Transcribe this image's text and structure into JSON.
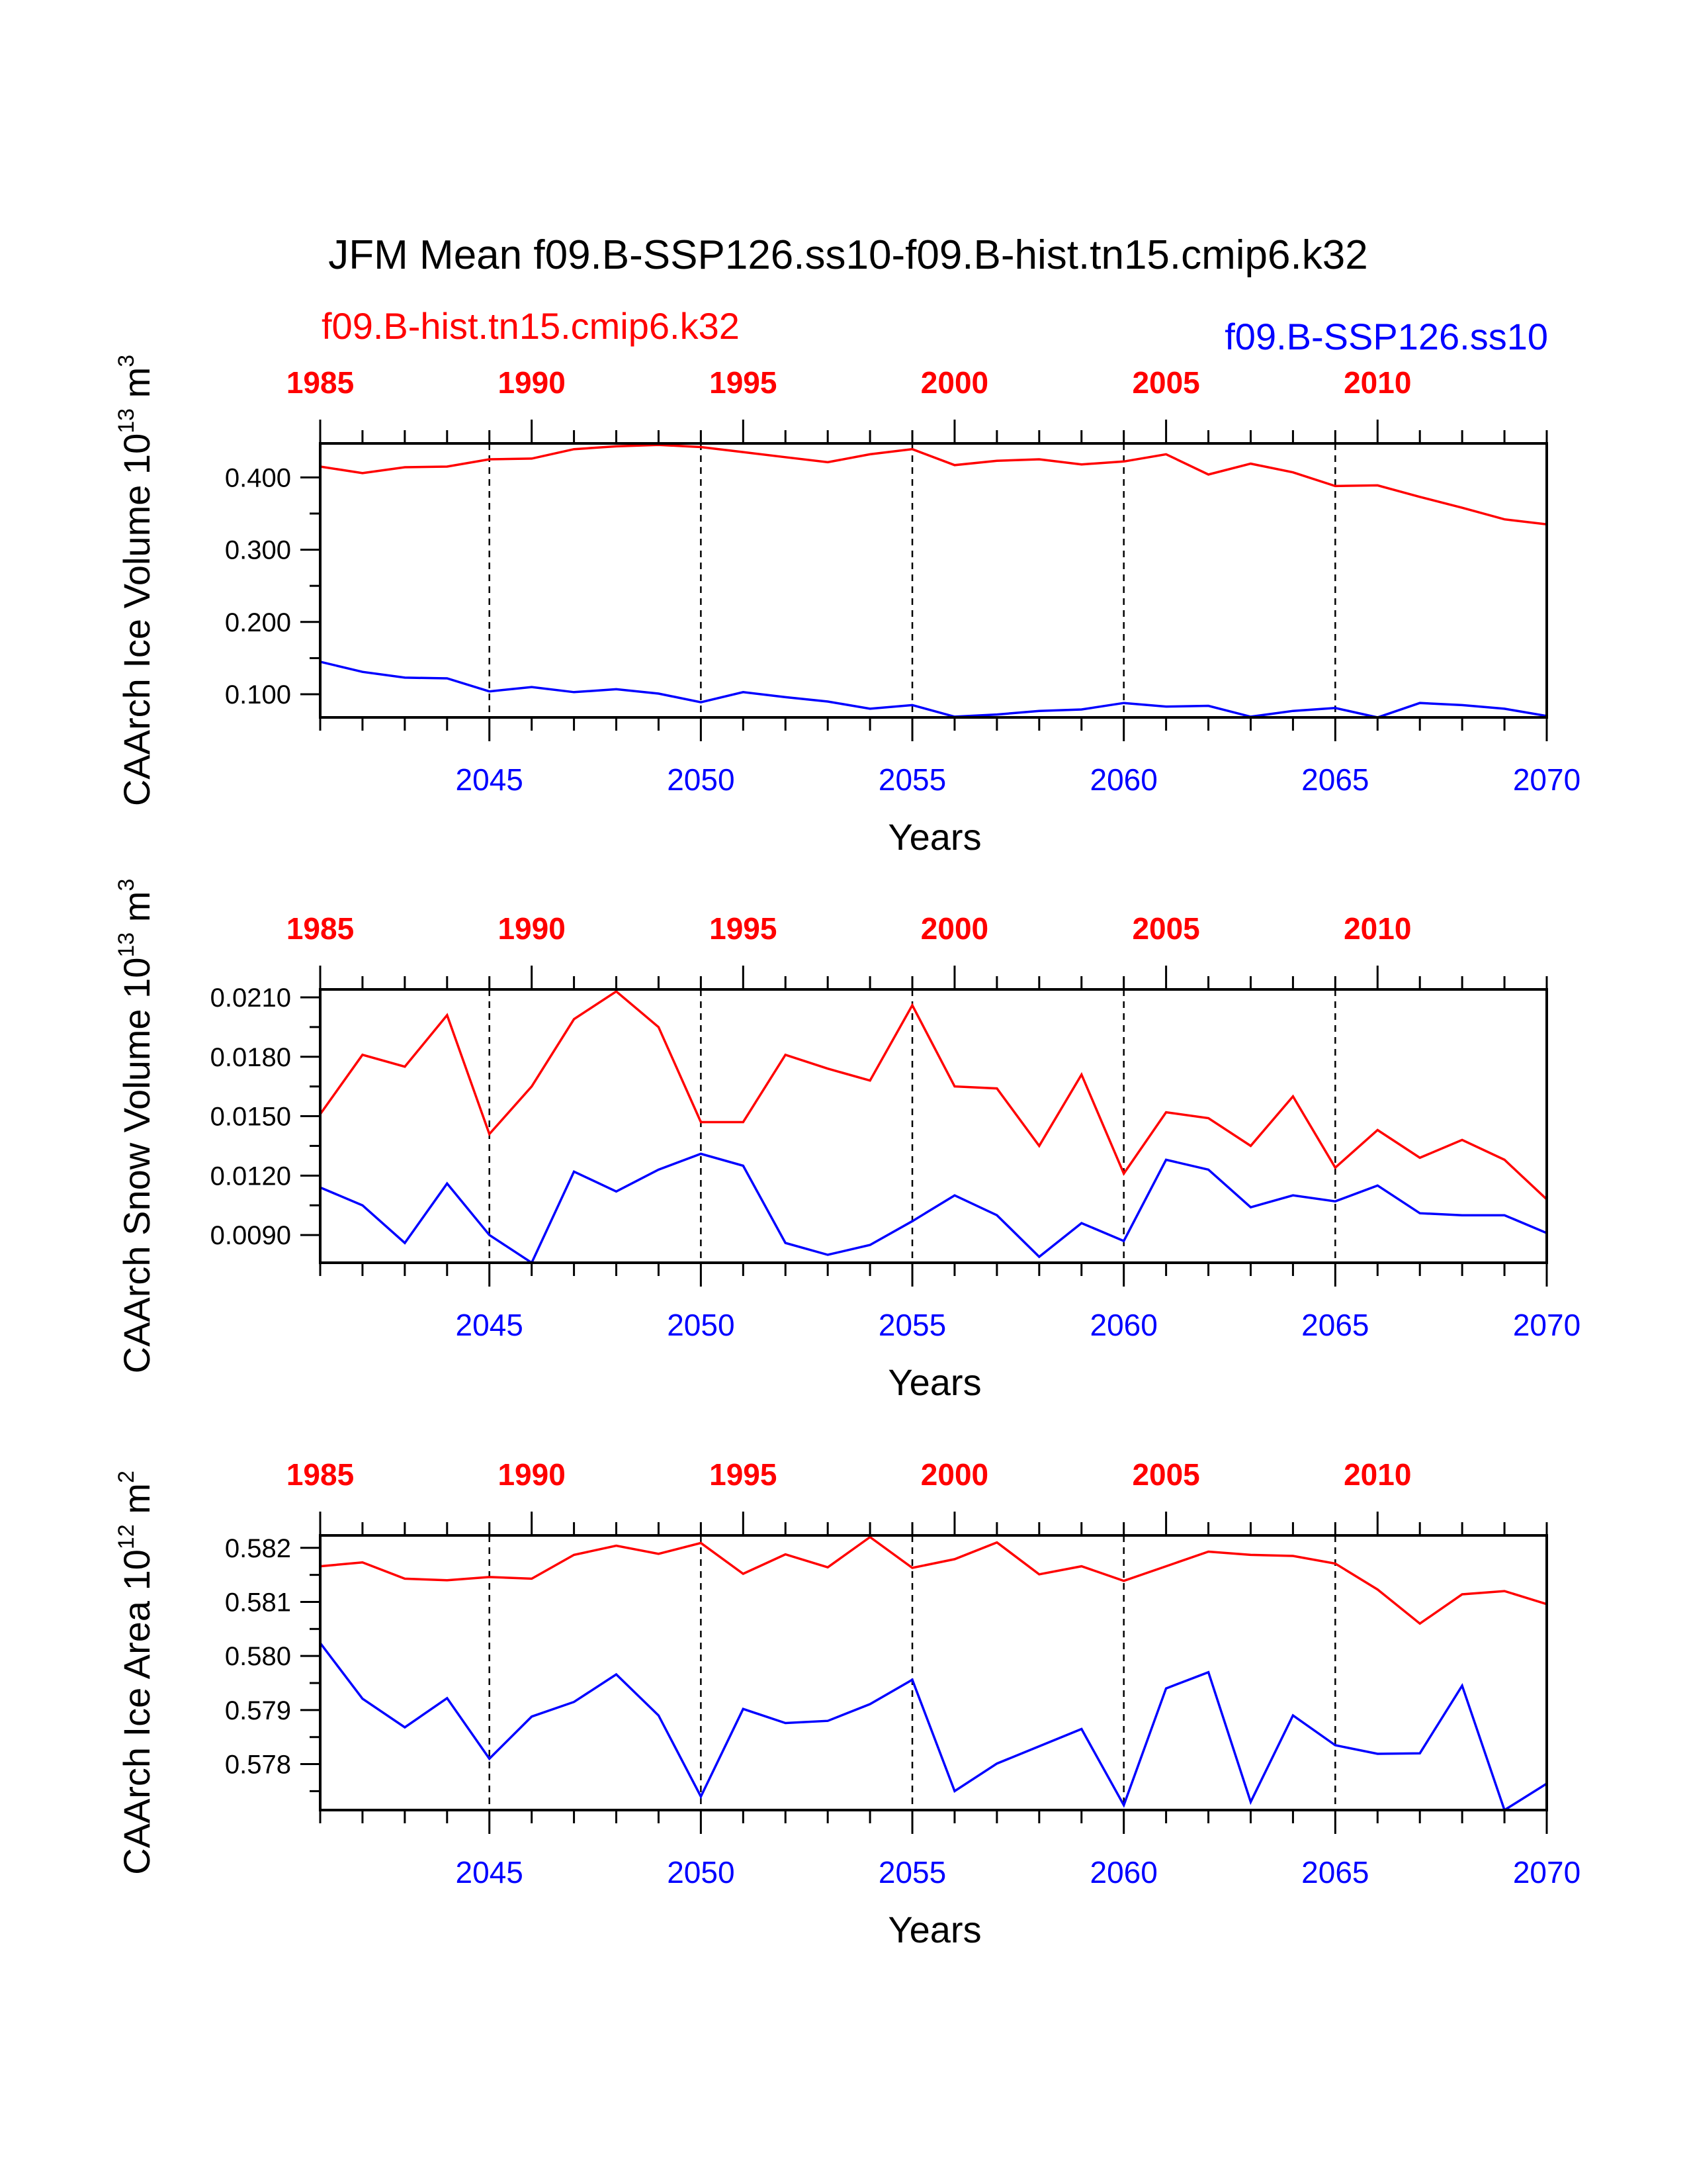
{
  "title": "JFM Mean f09.B-SSP126.ss10-f09.B-hist.tn15.cmip6.k32",
  "legend": {
    "red": "f09.B-hist.tn15.cmip6.k32",
    "blue": "f09.B-SSP126.ss10"
  },
  "colors": {
    "red": "#ff0000",
    "blue": "#0000ff",
    "axis": "#000000"
  },
  "chart_data": [
    {
      "type": "line",
      "ylabel": {
        "base": "CAArch Ice Volume 10",
        "exp": "13",
        "unit": " m",
        "unit_exp": "3"
      },
      "xlabel": "Years",
      "x_bottom": {
        "min": 2041,
        "max": 2070,
        "ticks": [
          2045,
          2050,
          2055,
          2060,
          2065,
          2070
        ]
      },
      "x_top": {
        "min": 1985,
        "max": 2014,
        "ticks": [
          1985,
          1990,
          1995,
          2000,
          2005,
          2010
        ]
      },
      "ylim": [
        0.068,
        0.447
      ],
      "yticks": [
        {
          "v": 0.1,
          "label": "0.100"
        },
        {
          "v": 0.2,
          "label": "0.200"
        },
        {
          "v": 0.3,
          "label": "0.300"
        },
        {
          "v": 0.4,
          "label": "0.400"
        }
      ],
      "grid_lines_x": [
        2045,
        2050,
        2055,
        2060,
        2065
      ],
      "series": [
        {
          "name": "f09.B-hist.tn15.cmip6.k32",
          "color": "#ff0000",
          "axis": "top",
          "x": [
            1985,
            1986,
            1987,
            1988,
            1989,
            1990,
            1991,
            1992,
            1993,
            1994,
            1995,
            1996,
            1997,
            1998,
            1999,
            2000,
            2001,
            2002,
            2003,
            2004,
            2005,
            2006,
            2007,
            2008,
            2009,
            2010,
            2011,
            2012,
            2013,
            2014
          ],
          "values": [
            0.415,
            0.406,
            0.414,
            0.415,
            0.425,
            0.426,
            0.439,
            0.443,
            0.445,
            0.442,
            0.435,
            0.428,
            0.421,
            0.432,
            0.439,
            0.417,
            0.423,
            0.425,
            0.418,
            0.422,
            0.432,
            0.404,
            0.419,
            0.407,
            0.388,
            0.389,
            0.373,
            0.358,
            0.342,
            0.335
          ]
        },
        {
          "name": "f09.B-SSP126.ss10",
          "color": "#0000ff",
          "axis": "bottom",
          "x": [
            2041,
            2042,
            2043,
            2044,
            2045,
            2046,
            2047,
            2048,
            2049,
            2050,
            2051,
            2052,
            2053,
            2054,
            2055,
            2056,
            2057,
            2058,
            2059,
            2060,
            2061,
            2062,
            2063,
            2064,
            2065,
            2066,
            2067,
            2068,
            2069,
            2070
          ],
          "values": [
            0.145,
            0.131,
            0.123,
            0.122,
            0.104,
            0.11,
            0.103,
            0.107,
            0.101,
            0.089,
            0.103,
            0.096,
            0.09,
            0.08,
            0.085,
            0.069,
            0.072,
            0.077,
            0.079,
            0.088,
            0.083,
            0.084,
            0.069,
            0.077,
            0.081,
            0.068,
            0.088,
            0.085,
            0.08,
            0.07
          ]
        }
      ]
    },
    {
      "type": "line",
      "ylabel": {
        "base": "CAArch Snow Volume 10",
        "exp": "13",
        "unit": " m",
        "unit_exp": "3"
      },
      "xlabel": "Years",
      "x_bottom": {
        "min": 2041,
        "max": 2070,
        "ticks": [
          2045,
          2050,
          2055,
          2060,
          2065,
          2070
        ]
      },
      "x_top": {
        "min": 1985,
        "max": 2014,
        "ticks": [
          1985,
          1990,
          1995,
          2000,
          2005,
          2010
        ]
      },
      "ylim": [
        0.0076,
        0.0214
      ],
      "yticks": [
        {
          "v": 0.009,
          "label": "0.0090"
        },
        {
          "v": 0.012,
          "label": "0.0120"
        },
        {
          "v": 0.015,
          "label": "0.0150"
        },
        {
          "v": 0.018,
          "label": "0.0180"
        },
        {
          "v": 0.021,
          "label": "0.0210"
        }
      ],
      "grid_lines_x": [
        2045,
        2050,
        2055,
        2060,
        2065
      ],
      "series": [
        {
          "name": "f09.B-hist.tn15.cmip6.k32",
          "color": "#ff0000",
          "axis": "top",
          "x": [
            1985,
            1986,
            1987,
            1988,
            1989,
            1990,
            1991,
            1992,
            1993,
            1994,
            1995,
            1996,
            1997,
            1998,
            1999,
            2000,
            2001,
            2002,
            2003,
            2004,
            2005,
            2006,
            2007,
            2008,
            2009,
            2010,
            2011,
            2012,
            2013,
            2014
          ],
          "values": [
            0.0151,
            0.0181,
            0.0175,
            0.0201,
            0.0141,
            0.0165,
            0.0199,
            0.0213,
            0.0195,
            0.0147,
            0.0147,
            0.0181,
            0.0174,
            0.0168,
            0.0206,
            0.0165,
            0.0164,
            0.0135,
            0.0171,
            0.0121,
            0.0152,
            0.0149,
            0.0135,
            0.016,
            0.0124,
            0.0143,
            0.0129,
            0.0138,
            0.0128,
            0.0108
          ]
        },
        {
          "name": "f09.B-SSP126.ss10",
          "color": "#0000ff",
          "axis": "bottom",
          "x": [
            2041,
            2042,
            2043,
            2044,
            2045,
            2046,
            2047,
            2048,
            2049,
            2050,
            2051,
            2052,
            2053,
            2054,
            2055,
            2056,
            2057,
            2058,
            2059,
            2060,
            2061,
            2062,
            2063,
            2064,
            2065,
            2066,
            2067,
            2068,
            2069,
            2070
          ],
          "values": [
            0.0114,
            0.0105,
            0.0086,
            0.0116,
            0.009,
            0.0076,
            0.0122,
            0.0112,
            0.0123,
            0.0131,
            0.0125,
            0.0086,
            0.008,
            0.0085,
            0.0097,
            0.011,
            0.01,
            0.0079,
            0.0096,
            0.0087,
            0.0128,
            0.0123,
            0.0104,
            0.011,
            0.0107,
            0.0115,
            0.0101,
            0.01,
            0.01,
            0.0091
          ]
        }
      ]
    },
    {
      "type": "line",
      "ylabel": {
        "base": "CAArch Ice Area 10",
        "exp": "12",
        "unit": " m",
        "unit_exp": "2"
      },
      "xlabel": "Years",
      "x_bottom": {
        "min": 2041,
        "max": 2070,
        "ticks": [
          2045,
          2050,
          2055,
          2060,
          2065,
          2070
        ]
      },
      "x_top": {
        "min": 1985,
        "max": 2014,
        "ticks": [
          1985,
          1990,
          1995,
          2000,
          2005,
          2010
        ]
      },
      "ylim": [
        0.57715,
        0.58223
      ],
      "yticks": [
        {
          "v": 0.578,
          "label": "0.578"
        },
        {
          "v": 0.579,
          "label": "0.579"
        },
        {
          "v": 0.58,
          "label": "0.580"
        },
        {
          "v": 0.581,
          "label": "0.581"
        },
        {
          "v": 0.582,
          "label": "0.582"
        }
      ],
      "grid_lines_x": [
        2045,
        2050,
        2055,
        2060,
        2065
      ],
      "series": [
        {
          "name": "f09.B-hist.tn15.cmip6.k32",
          "color": "#ff0000",
          "axis": "top",
          "x": [
            1985,
            1986,
            1987,
            1988,
            1989,
            1990,
            1991,
            1992,
            1993,
            1994,
            1995,
            1996,
            1997,
            1998,
            1999,
            2000,
            2001,
            2002,
            2003,
            2004,
            2005,
            2006,
            2007,
            2008,
            2009,
            2010,
            2011,
            2012,
            2013,
            2014
          ],
          "values": [
            0.58166,
            0.58173,
            0.58143,
            0.5814,
            0.58146,
            0.58143,
            0.58187,
            0.58204,
            0.58189,
            0.58209,
            0.58152,
            0.58188,
            0.58164,
            0.5822,
            0.58163,
            0.58179,
            0.5821,
            0.58151,
            0.58166,
            0.58139,
            0.58166,
            0.58193,
            0.58187,
            0.58185,
            0.58171,
            0.58123,
            0.5806,
            0.58114,
            0.5812,
            0.58096
          ]
        },
        {
          "name": "f09.B-SSP126.ss10",
          "color": "#0000ff",
          "axis": "bottom",
          "x": [
            2041,
            2042,
            2043,
            2044,
            2045,
            2046,
            2047,
            2048,
            2049,
            2050,
            2051,
            2052,
            2053,
            2054,
            2055,
            2056,
            2057,
            2058,
            2059,
            2060,
            2061,
            2062,
            2063,
            2064,
            2065,
            2066,
            2067,
            2068,
            2069,
            2070
          ],
          "values": [
            0.58024,
            0.57921,
            0.57868,
            0.57922,
            0.5781,
            0.57888,
            0.57915,
            0.57966,
            0.5789,
            0.5774,
            0.57902,
            0.57876,
            0.5788,
            0.57911,
            0.57956,
            0.5775,
            0.57801,
            0.57833,
            0.57865,
            0.57724,
            0.5794,
            0.5797,
            0.5773,
            0.5789,
            0.57835,
            0.57819,
            0.5782,
            0.57945,
            0.57715,
            0.57764
          ]
        }
      ]
    }
  ]
}
